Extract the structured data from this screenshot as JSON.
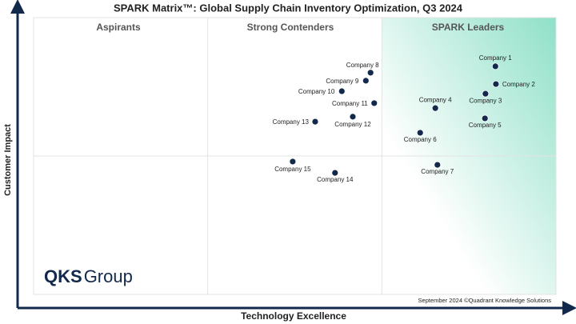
{
  "chart_data": {
    "type": "scatter",
    "title": "SPARK Matrix™: Global Supply Chain Inventory Optimization, Q3 2024",
    "xlabel": "Technology Excellence",
    "ylabel": "Customer Impact",
    "quadrant_labels": [
      "Aspirants",
      "Strong Contenders",
      "SPARK Leaders"
    ],
    "labels": [
      "Company 1",
      "Company 2",
      "Company 3",
      "Company 4",
      "Company 5",
      "Company 6",
      "Company 7",
      "Company 8",
      "Company 9",
      "Company 10",
      "Company 11",
      "Company 12",
      "Company 13",
      "Company 14",
      "Company 15"
    ],
    "x": [
      88.4,
      88.5,
      86.5,
      76.9,
      86.4,
      74.0,
      77.3,
      64.5,
      63.6,
      59.0,
      65.2,
      61.1,
      53.9,
      57.7,
      49.6
    ],
    "values": [
      82.4,
      76.0,
      72.5,
      67.3,
      63.6,
      58.4,
      46.8,
      80.1,
      77.2,
      73.4,
      69.1,
      64.2,
      62.4,
      43.9,
      48.0
    ],
    "color": "#13294b",
    "xlim": [
      0,
      100
    ],
    "ylim": [
      0,
      100
    ],
    "logo": {
      "bold": "QKS",
      "light": "Group"
    },
    "footnote": "September 2024 ©Quadrant Knowledge Solutions"
  }
}
